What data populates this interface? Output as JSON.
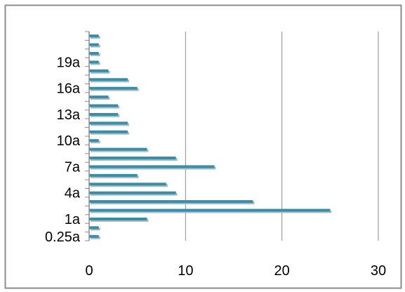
{
  "chart_data": {
    "type": "bar",
    "orientation": "horizontal",
    "categories": [
      "0.25a",
      "0.5a",
      "1a",
      "2a",
      "3a",
      "4a",
      "5a",
      "6a",
      "7a",
      "8a",
      "9a",
      "10a",
      "11a",
      "12a",
      "13a",
      "14a",
      "15a",
      "16a",
      "17a",
      "18a",
      "19a",
      "20a",
      "21a",
      "22a"
    ],
    "values": [
      1,
      1,
      6,
      25,
      17,
      9,
      8,
      5,
      13,
      9,
      6,
      1,
      4,
      4,
      3,
      3,
      2,
      5,
      4,
      2,
      1,
      1,
      1,
      1
    ],
    "y_tick_labels": [
      "0.25a",
      "1a",
      "4a",
      "7a",
      "10a",
      "13a",
      "16a",
      "19a"
    ],
    "x_ticks": [
      0,
      10,
      20,
      30
    ],
    "xlim": [
      0,
      30
    ],
    "title": "",
    "xlabel": "",
    "ylabel": "",
    "grid": "vertical",
    "legend": "none",
    "colors": {
      "bar": "#3b8ca6",
      "bar_shadow": "#9fbfcb",
      "grid": "#8c8c8c",
      "axis": "#8c8c8c",
      "frame": "#8c8c8c"
    }
  }
}
